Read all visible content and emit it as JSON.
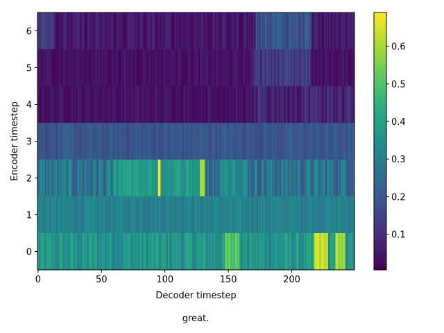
{
  "chart_data": {
    "type": "heatmap",
    "title": "",
    "xlabel": "Decoder timestep",
    "ylabel": "Encoder timestep",
    "caption": "great.",
    "n_cols": 250,
    "n_rows": 7,
    "xlim": [
      -0.5,
      249.5
    ],
    "ylim": [
      -0.5,
      6.5
    ],
    "x_ticks": [
      0,
      50,
      100,
      150,
      200
    ],
    "y_ticks": [
      0,
      1,
      2,
      3,
      4,
      5,
      6
    ],
    "colormap": "viridis",
    "colorbar": {
      "vmin": 0.005,
      "vmax": 0.69,
      "ticks": [
        0.1,
        0.2,
        0.3,
        0.4,
        0.5,
        0.6
      ]
    },
    "row_profiles": [
      {
        "row": 0,
        "base": 0.36,
        "noise": 0.08,
        "peaks": [
          [
            148,
            158,
            0.52
          ],
          [
            218,
            228,
            0.64
          ],
          [
            235,
            242,
            0.6
          ]
        ]
      },
      {
        "row": 1,
        "base": 0.31,
        "noise": 0.04,
        "peaks": []
      },
      {
        "row": 2,
        "base": 0.27,
        "noise": 0.1,
        "peaks": [
          [
            60,
            130,
            0.38
          ],
          [
            95,
            96,
            0.68
          ],
          [
            128,
            131,
            0.62
          ],
          [
            145,
            165,
            0.35
          ]
        ]
      },
      {
        "row": 3,
        "base": 0.19,
        "noise": 0.04,
        "peaks": []
      },
      {
        "row": 4,
        "base": 0.04,
        "noise": 0.025,
        "peaks": [
          [
            170,
            249,
            0.08
          ]
        ]
      },
      {
        "row": 5,
        "base": 0.04,
        "noise": 0.025,
        "peaks": [
          [
            170,
            215,
            0.13
          ]
        ]
      },
      {
        "row": 6,
        "base": 0.05,
        "noise": 0.04,
        "peaks": [
          [
            0,
            12,
            0.13
          ],
          [
            172,
            215,
            0.19
          ]
        ]
      }
    ]
  }
}
